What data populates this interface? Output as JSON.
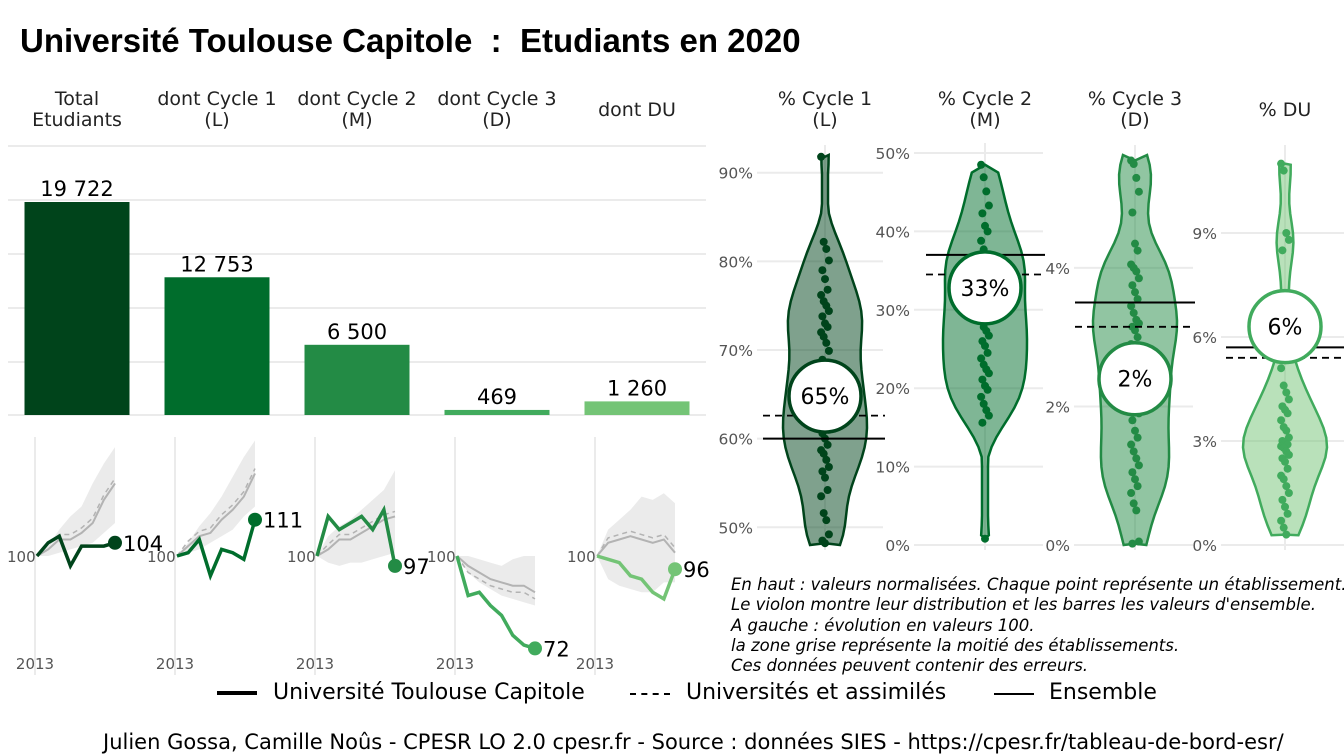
{
  "title": "Université Toulouse Capitole  :  Etudiants en 2020",
  "colors": {
    "total": "#00441b",
    "cycle1": "#006d2c",
    "cycle2": "#238b45",
    "cycle3": "#41ab5d",
    "du": "#74c476",
    "grid": "#ebebeb",
    "band": "#ebebeb",
    "reference": "#b3b3b3"
  },
  "chart_data": [
    {
      "type": "bar",
      "categories": [
        "Total\nEtudiants",
        "dont Cycle 1\n(L)",
        "dont Cycle 2\n(M)",
        "dont Cycle 3\n(D)",
        "dont DU"
      ],
      "values": [
        19722,
        12753,
        6500,
        469,
        1260
      ],
      "labels": [
        "19 722",
        "12 753",
        "6 500",
        "469",
        "1 260"
      ],
      "grid": true
    },
    {
      "type": "line",
      "x_tick_label": "2013",
      "baseline_label": "100",
      "panels": [
        {
          "name": "Total Etudiants",
          "series": [
            100,
            104,
            106,
            97,
            103,
            103,
            103,
            104
          ],
          "reference": [
            100,
            102,
            105,
            105,
            107,
            110,
            117,
            122
          ],
          "band_low": [
            100,
            100,
            101,
            102,
            103,
            104,
            107,
            110
          ],
          "band_high": [
            100,
            103,
            108,
            112,
            115,
            122,
            128,
            133
          ],
          "end_label": "104"
        },
        {
          "name": "dont Cycle 1 (L)",
          "series": [
            100,
            101,
            105,
            94,
            102,
            101,
            99,
            111
          ],
          "reference": [
            100,
            103,
            106,
            107,
            111,
            114,
            118,
            125
          ],
          "band_low": [
            100,
            101,
            102,
            104,
            106,
            108,
            112,
            115
          ],
          "band_high": [
            100,
            104,
            109,
            113,
            118,
            124,
            130,
            135
          ],
          "end_label": "111"
        },
        {
          "name": "dont Cycle 2 (M)",
          "series": [
            100,
            112,
            108,
            110,
            112,
            108,
            114,
            97
          ],
          "reference": [
            100,
            102,
            105,
            105,
            107,
            109,
            111,
            112
          ],
          "band_low": [
            100,
            98,
            97,
            98,
            98,
            99,
            100,
            101
          ],
          "band_high": [
            100,
            106,
            109,
            111,
            114,
            117,
            120,
            126
          ],
          "end_label": "97"
        },
        {
          "name": "dont Cycle 3 (D)",
          "series": [
            100,
            88,
            89,
            85,
            82,
            76,
            73,
            72
          ],
          "reference": [
            100,
            97,
            95,
            93,
            92,
            91,
            91,
            89
          ],
          "band_low": [
            100,
            95,
            92,
            90,
            88,
            87,
            86,
            85
          ],
          "band_high": [
            100,
            100,
            99,
            98,
            97,
            99,
            100,
            100
          ],
          "end_label": "72"
        },
        {
          "name": "dont DU",
          "series": [
            100,
            99,
            98,
            94,
            93,
            89,
            87,
            96
          ],
          "reference": [
            100,
            104,
            105,
            106,
            105,
            104,
            105,
            101
          ],
          "band_low": [
            100,
            93,
            91,
            90,
            89,
            89,
            92,
            92
          ],
          "band_high": [
            100,
            108,
            111,
            114,
            118,
            117,
            119,
            116
          ],
          "end_label": "96"
        }
      ]
    },
    {
      "type": "scatter",
      "subtype": "violin",
      "panels": [
        {
          "name": "% Cycle 1\n(L)",
          "ylim": [
            48,
            92
          ],
          "yticks": [
            50,
            60,
            70,
            80,
            90
          ],
          "tick_labels": [
            "50%",
            "60%",
            "70%",
            "80%",
            "90%"
          ],
          "value": 64.8,
          "value_label": "65%",
          "ensemble": 60,
          "universites": 62.6,
          "points": [
            91.8,
            82.2,
            81.4,
            80.1,
            79.0,
            78.0,
            76.8,
            76.2,
            75.5,
            75.0,
            74.4,
            73.8,
            73.0,
            72.6,
            72.0,
            71.5,
            70.8,
            69.9,
            68.9,
            68.0,
            67.5,
            67.0,
            66.4,
            66.0,
            65.0,
            64.5,
            63.8,
            63.0,
            62.6,
            62.1,
            61.5,
            61.0,
            60.6,
            60.0,
            59.3,
            58.7,
            58.3,
            57.6,
            56.8,
            56.3,
            55.6,
            54.2,
            53.5,
            51.6,
            50.8,
            49.2,
            48.5,
            48.2
          ]
        },
        {
          "name": "% Cycle 2\n(M)",
          "ylim": [
            0,
            50
          ],
          "yticks": [
            0,
            10,
            20,
            30,
            40,
            50
          ],
          "tick_labels": [
            "0%",
            "10%",
            "20%",
            "30%",
            "40%",
            "50%"
          ],
          "value": 32.8,
          "value_label": "33%",
          "ensemble": 37,
          "universites": 34.5,
          "points": [
            48.5,
            46.9,
            45.1,
            43.3,
            42.3,
            40.7,
            40.0,
            38.8,
            37.7,
            37.0,
            36.5,
            36.0,
            35.3,
            34.7,
            34.1,
            33.2,
            32.4,
            31.5,
            30.8,
            30.0,
            29.3,
            28.6,
            27.8,
            27.3,
            26.7,
            26.0,
            25.4,
            24.5,
            23.8,
            23.0,
            22.4,
            21.9,
            21.1,
            20.3,
            19.8,
            18.9,
            18.0,
            17.2,
            16.5,
            15.6,
            0.8
          ]
        },
        {
          "name": "% Cycle 3\n(D)",
          "ylim": [
            0,
            5.63
          ],
          "yticks": [
            0,
            2,
            4
          ],
          "tick_labels": [
            "0%",
            "2%",
            "4%"
          ],
          "value": 2.4,
          "value_label": "2%",
          "ensemble": 3.5,
          "universites": 3.15,
          "points": [
            5.55,
            5.5,
            5.3,
            5.1,
            4.8,
            4.35,
            4.25,
            4.05,
            4.0,
            3.95,
            3.85,
            3.75,
            3.65,
            3.55,
            3.45,
            3.35,
            3.25,
            3.2,
            3.15,
            3.1,
            3.0,
            2.9,
            2.8,
            2.7,
            2.6,
            2.5,
            2.4,
            2.3,
            2.2,
            2.1,
            2.0,
            1.9,
            1.8,
            1.65,
            1.55,
            1.45,
            1.35,
            1.25,
            1.15,
            1.05,
            0.95,
            0.85,
            0.75,
            0.6,
            0.5,
            0.05,
            0.02
          ]
        },
        {
          "name": "% DU",
          "ylim": [
            0,
            11.25
          ],
          "yticks": [
            0,
            3,
            6,
            9
          ],
          "tick_labels": [
            "0%",
            "3%",
            "6%",
            "9%"
          ],
          "value": 6.3,
          "value_label": "6%",
          "ensemble": 5.7,
          "universites": 5.4,
          "points": [
            11.0,
            10.8,
            9.0,
            8.8,
            8.5,
            7.1,
            5.5,
            5.1,
            4.6,
            4.4,
            4.2,
            4.0,
            3.9,
            3.8,
            3.6,
            3.4,
            3.3,
            3.1,
            3.0,
            2.95,
            2.9,
            2.85,
            2.8,
            2.7,
            2.6,
            2.5,
            2.4,
            2.2,
            2.0,
            1.9,
            1.7,
            1.5,
            1.3,
            1.1,
            0.9,
            0.7,
            0.5,
            0.3
          ]
        }
      ]
    }
  ],
  "notes": [
    "En haut : valeurs normalisées. Chaque point représente un établissement.",
    "Le violon montre leur distribution et les barres les valeurs d'ensemble.",
    "A gauche : évolution en valeurs 100.",
    "la zone grise représente la moitié des établissements.",
    "Ces données peuvent contenir des erreurs."
  ],
  "legend": [
    {
      "label": "Université Toulouse Capitole",
      "style": "solid-thick"
    },
    {
      "label": "Universités et assimilés",
      "style": "dashed"
    },
    {
      "label": "Ensemble",
      "style": "solid"
    }
  ],
  "footer": "Julien Gossa, Camille Noûs - CPESR LO 2.0 cpesr.fr - Source : données SIES - https://cpesr.fr/tableau-de-bord-esr/"
}
